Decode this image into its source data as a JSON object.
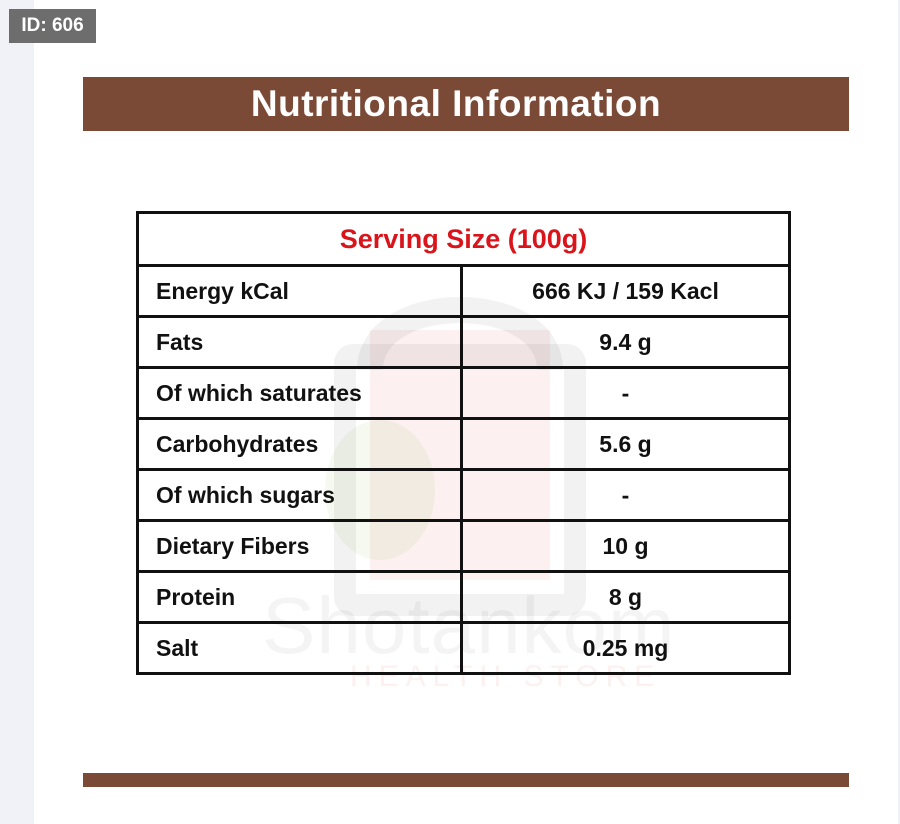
{
  "badge": {
    "text": "ID: 606"
  },
  "header": {
    "title": "Nutritional Information"
  },
  "watermark": {
    "brand": "Shotankom",
    "sub": "HEALTH STORE"
  },
  "table": {
    "serving_size": "Serving Size (100g)",
    "rows": [
      {
        "label": "Energy kCal",
        "value": "666 KJ / 159 Kacl"
      },
      {
        "label": "Fats",
        "value": "9.4 g"
      },
      {
        "label": "Of which saturates",
        "value": "-"
      },
      {
        "label": "Carbohydrates",
        "value": "5.6 g"
      },
      {
        "label": "Of which sugars",
        "value": "-"
      },
      {
        "label": "Dietary Fibers",
        "value": "10 g"
      },
      {
        "label": "Protein",
        "value": "8 g"
      },
      {
        "label": "Salt",
        "value": "0.25 mg"
      }
    ]
  },
  "colors": {
    "brand_brown": "#7b4a37",
    "serving_red": "#d9141b",
    "border": "#111111"
  }
}
